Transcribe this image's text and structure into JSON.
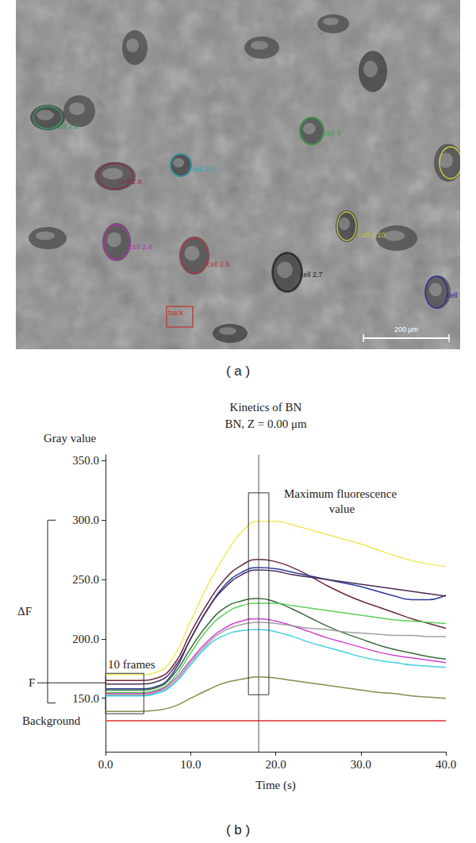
{
  "panel_labels": [
    "( a )",
    "( b )"
  ],
  "micrograph": {
    "rois": [
      {
        "label": "cell 2.1",
        "color": "#2e9e5a"
      },
      {
        "label": "cell 2.8",
        "color": "#8e2a4a"
      },
      {
        "label": "cell 2.9",
        "color": "#2aa8b8"
      },
      {
        "label": "cell 3",
        "color": "#3aa84a"
      },
      {
        "color": "#d8d040"
      },
      {
        "label": "cell 2.10",
        "color": "#c8c040"
      },
      {
        "label": "cell 2.4",
        "color": "#b030b0"
      },
      {
        "label": "cell 2.6",
        "color": "#c03040"
      },
      {
        "label": "cell 2.7",
        "color": "#222222"
      },
      {
        "label": "cell",
        "color": "#2a2aa0"
      }
    ],
    "background_roi": {
      "label": "back",
      "color": "#c03030"
    },
    "scale_bar": "200 μm"
  },
  "chart_data": {
    "type": "line",
    "title": "Kinetics of BN",
    "subtitle": "BN, Z = 0.00 μm",
    "y_label": "Gray value",
    "x_label": "Time (s)",
    "xlim": [
      0,
      40
    ],
    "xticks": [
      {
        "value": 0,
        "label": "0.0"
      },
      {
        "value": 10,
        "label": "10.0"
      },
      {
        "value": 20,
        "label": "20.0"
      },
      {
        "value": 30,
        "label": "30.0"
      },
      {
        "value": 40,
        "label": "40.0"
      }
    ],
    "ylim": [
      105,
      355
    ],
    "yticks": [
      {
        "value": 150,
        "label": "150.0"
      },
      {
        "value": 200,
        "label": "200.0"
      },
      {
        "value": 250,
        "label": "250.0"
      },
      {
        "value": 300,
        "label": "300.0"
      },
      {
        "value": 350,
        "label": "350.0"
      }
    ],
    "grid": false,
    "x": [
      0,
      2,
      4,
      6,
      8,
      10,
      12,
      14,
      16,
      18,
      20,
      22,
      24,
      26,
      28,
      30,
      32,
      34,
      36,
      38,
      40
    ],
    "series": [
      {
        "color": "#f0e860",
        "values": [
          170,
          170,
          170,
          172,
          185,
          215,
          245,
          270,
          290,
          299,
          299,
          296,
          292,
          288,
          284,
          280,
          275,
          270,
          266,
          263,
          261
        ]
      },
      {
        "color": "#6b2a3a",
        "values": [
          165,
          165,
          165,
          167,
          178,
          205,
          230,
          250,
          262,
          267,
          265,
          260,
          253,
          245,
          238,
          232,
          227,
          222,
          217,
          213,
          209
        ]
      },
      {
        "color": "#2b3a9a",
        "values": [
          158,
          158,
          158,
          160,
          172,
          200,
          225,
          245,
          256,
          260,
          259,
          256,
          253,
          250,
          247,
          244,
          240,
          236,
          233,
          233,
          237
        ]
      },
      {
        "color": "#4a2a5a",
        "values": [
          162,
          162,
          162,
          164,
          175,
          200,
          225,
          243,
          254,
          258,
          257,
          254,
          252,
          250,
          248,
          246,
          244,
          242,
          240,
          238,
          236
        ]
      },
      {
        "color": "#3a6a3a",
        "values": [
          157,
          157,
          157,
          159,
          170,
          192,
          212,
          226,
          232,
          234,
          231,
          225,
          218,
          211,
          205,
          200,
          195,
          191,
          188,
          185,
          183
        ]
      },
      {
        "color": "#5ad05a",
        "values": [
          155,
          155,
          155,
          157,
          167,
          188,
          208,
          221,
          228,
          230,
          230,
          228,
          226,
          224,
          222,
          220,
          218,
          216,
          215,
          214,
          213
        ]
      },
      {
        "color": "#d040d0",
        "values": [
          154,
          154,
          154,
          156,
          165,
          182,
          198,
          209,
          215,
          217,
          215,
          211,
          206,
          201,
          197,
          193,
          189,
          186,
          184,
          182,
          180
        ]
      },
      {
        "color": "#a0a0a0",
        "values": [
          153,
          153,
          153,
          155,
          163,
          180,
          196,
          207,
          212,
          214,
          213,
          211,
          209,
          208,
          206,
          205,
          204,
          203,
          203,
          202,
          202
        ]
      },
      {
        "color": "#40d0e0",
        "values": [
          152,
          152,
          152,
          154,
          162,
          178,
          194,
          203,
          207,
          208,
          206,
          202,
          197,
          193,
          189,
          185,
          182,
          180,
          178,
          177,
          176
        ]
      },
      {
        "color": "#8a8a50",
        "values": [
          139,
          139,
          139,
          140,
          143,
          150,
          157,
          163,
          166,
          168,
          167,
          165,
          163,
          161,
          159,
          157,
          155,
          154,
          152,
          151,
          150
        ]
      },
      {
        "color": "#e03030",
        "values": [
          131,
          131,
          131,
          131,
          131,
          131,
          131,
          131,
          131,
          131,
          131,
          131,
          131,
          131,
          131,
          131,
          131,
          131,
          131,
          131,
          131
        ]
      }
    ],
    "annotations": {
      "delta_f": {
        "text": "ΔF",
        "y": [
          146,
          300
        ]
      },
      "f": {
        "text": "F",
        "y": 163
      },
      "background": {
        "text": "Background",
        "y": 131
      },
      "frames_box": {
        "text": "10 frames",
        "x": [
          0,
          4.5
        ],
        "y": [
          137,
          171
        ]
      },
      "max_box": {
        "text": "Maximum fluorescence value",
        "x": [
          16.8,
          19.2
        ],
        "y": [
          153,
          323
        ]
      },
      "vline": 18
    }
  }
}
